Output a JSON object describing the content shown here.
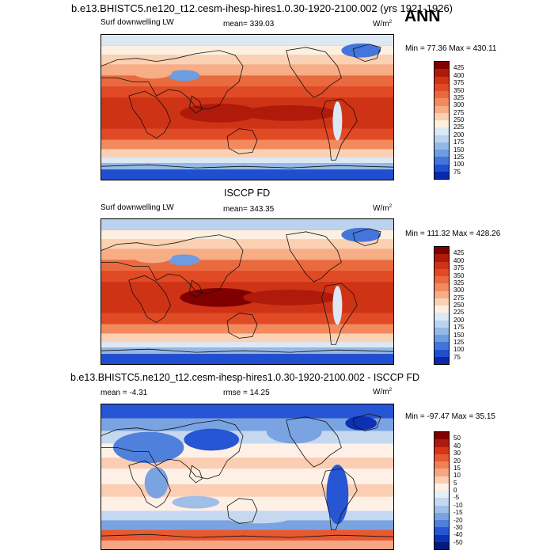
{
  "figure": {
    "title": "b.e13.BHISTC5.ne120_t12.cesm-ihesp-hires1.0.30-1920-2100.002 (yrs 1921-1926)",
    "season": "ANN"
  },
  "panels": [
    {
      "title": "",
      "variable": "Surf downwelling LW",
      "stat_left": "mean= 339.03",
      "units": "W/m",
      "units_sup": "2",
      "minmax": "Min =  77.36 Max = 430.11",
      "colorbar": {
        "labels": [
          "425",
          "400",
          "375",
          "350",
          "325",
          "300",
          "275",
          "250",
          "225",
          "200",
          "175",
          "150",
          "125",
          "100",
          "75"
        ],
        "colors": [
          "#800000",
          "#b01a0b",
          "#cf3316",
          "#e04a25",
          "#ea6a40",
          "#f28a5e",
          "#f7ad86",
          "#fbd1b3",
          "#fdf0e0",
          "#dde8f5",
          "#bbd3ee",
          "#94b9e6",
          "#6d9ce0",
          "#4475db",
          "#1f4fd0",
          "#0a28a8"
        ]
      }
    },
    {
      "title": "ISCCP FD",
      "variable": "Surf downwelling LW",
      "stat_left": "mean= 343.35",
      "units": "W/m",
      "units_sup": "2",
      "minmax": "Min = 111.32 Max = 428.26",
      "colorbar": {
        "labels": [
          "425",
          "400",
          "375",
          "350",
          "325",
          "300",
          "275",
          "250",
          "225",
          "200",
          "175",
          "150",
          "125",
          "100",
          "75"
        ],
        "colors": [
          "#800000",
          "#b01a0b",
          "#cf3316",
          "#e04a25",
          "#ea6a40",
          "#f28a5e",
          "#f7ad86",
          "#fbd1b3",
          "#fdf0e0",
          "#dde8f5",
          "#bbd3ee",
          "#94b9e6",
          "#6d9ce0",
          "#4475db",
          "#1f4fd0",
          "#0a28a8"
        ]
      }
    },
    {
      "title": "b.e13.BHISTC5.ne120_t12.cesm-ihesp-hires1.0.30-1920-2100.002 - ISCCP FD",
      "variable": "",
      "stat_left": "mean =  -4.31",
      "stat_mid": "rmse =  14.25",
      "units": "W/m",
      "units_sup": "2",
      "minmax": "Min = -97.47 Max =  35.15",
      "colorbar": {
        "labels": [
          "50",
          "40",
          "30",
          "20",
          "15",
          "10",
          "5",
          "0",
          "-5",
          "-10",
          "-15",
          "-20",
          "-30",
          "-40",
          "-50"
        ],
        "colors": [
          "#800000",
          "#b01a0b",
          "#d43617",
          "#e65a32",
          "#f08057",
          "#f6a683",
          "#fbcdb3",
          "#fef0e6",
          "#e6eef8",
          "#c5d8f0",
          "#a0bfe8",
          "#7aa3e2",
          "#4f80dc",
          "#2656d3",
          "#0e30b4",
          "#061a7a"
        ]
      }
    }
  ],
  "chart_data": [
    {
      "type": "heatmap",
      "title": "b.e13.BHISTC5.ne120_t12.cesm-ihesp-hires1.0.30-1920-2100.002 (yrs 1921-1926)",
      "variable": "Surf downwelling LW",
      "units": "W/m2",
      "mean": 339.03,
      "min": 77.36,
      "max": 430.11,
      "contour_levels": [
        75,
        100,
        125,
        150,
        175,
        200,
        225,
        250,
        275,
        300,
        325,
        350,
        375,
        400,
        425
      ]
    },
    {
      "type": "heatmap",
      "title": "ISCCP FD",
      "variable": "Surf downwelling LW",
      "units": "W/m2",
      "mean": 343.35,
      "min": 111.32,
      "max": 428.26,
      "contour_levels": [
        75,
        100,
        125,
        150,
        175,
        200,
        225,
        250,
        275,
        300,
        325,
        350,
        375,
        400,
        425
      ]
    },
    {
      "type": "heatmap",
      "title": "b.e13.BHISTC5.ne120_t12.cesm-ihesp-hires1.0.30-1920-2100.002 - ISCCP FD",
      "units": "W/m2",
      "mean": -4.31,
      "rmse": 14.25,
      "min": -97.47,
      "max": 35.15,
      "contour_levels": [
        -50,
        -40,
        -30,
        -20,
        -15,
        -10,
        -5,
        0,
        5,
        10,
        15,
        20,
        30,
        40,
        50
      ]
    }
  ]
}
